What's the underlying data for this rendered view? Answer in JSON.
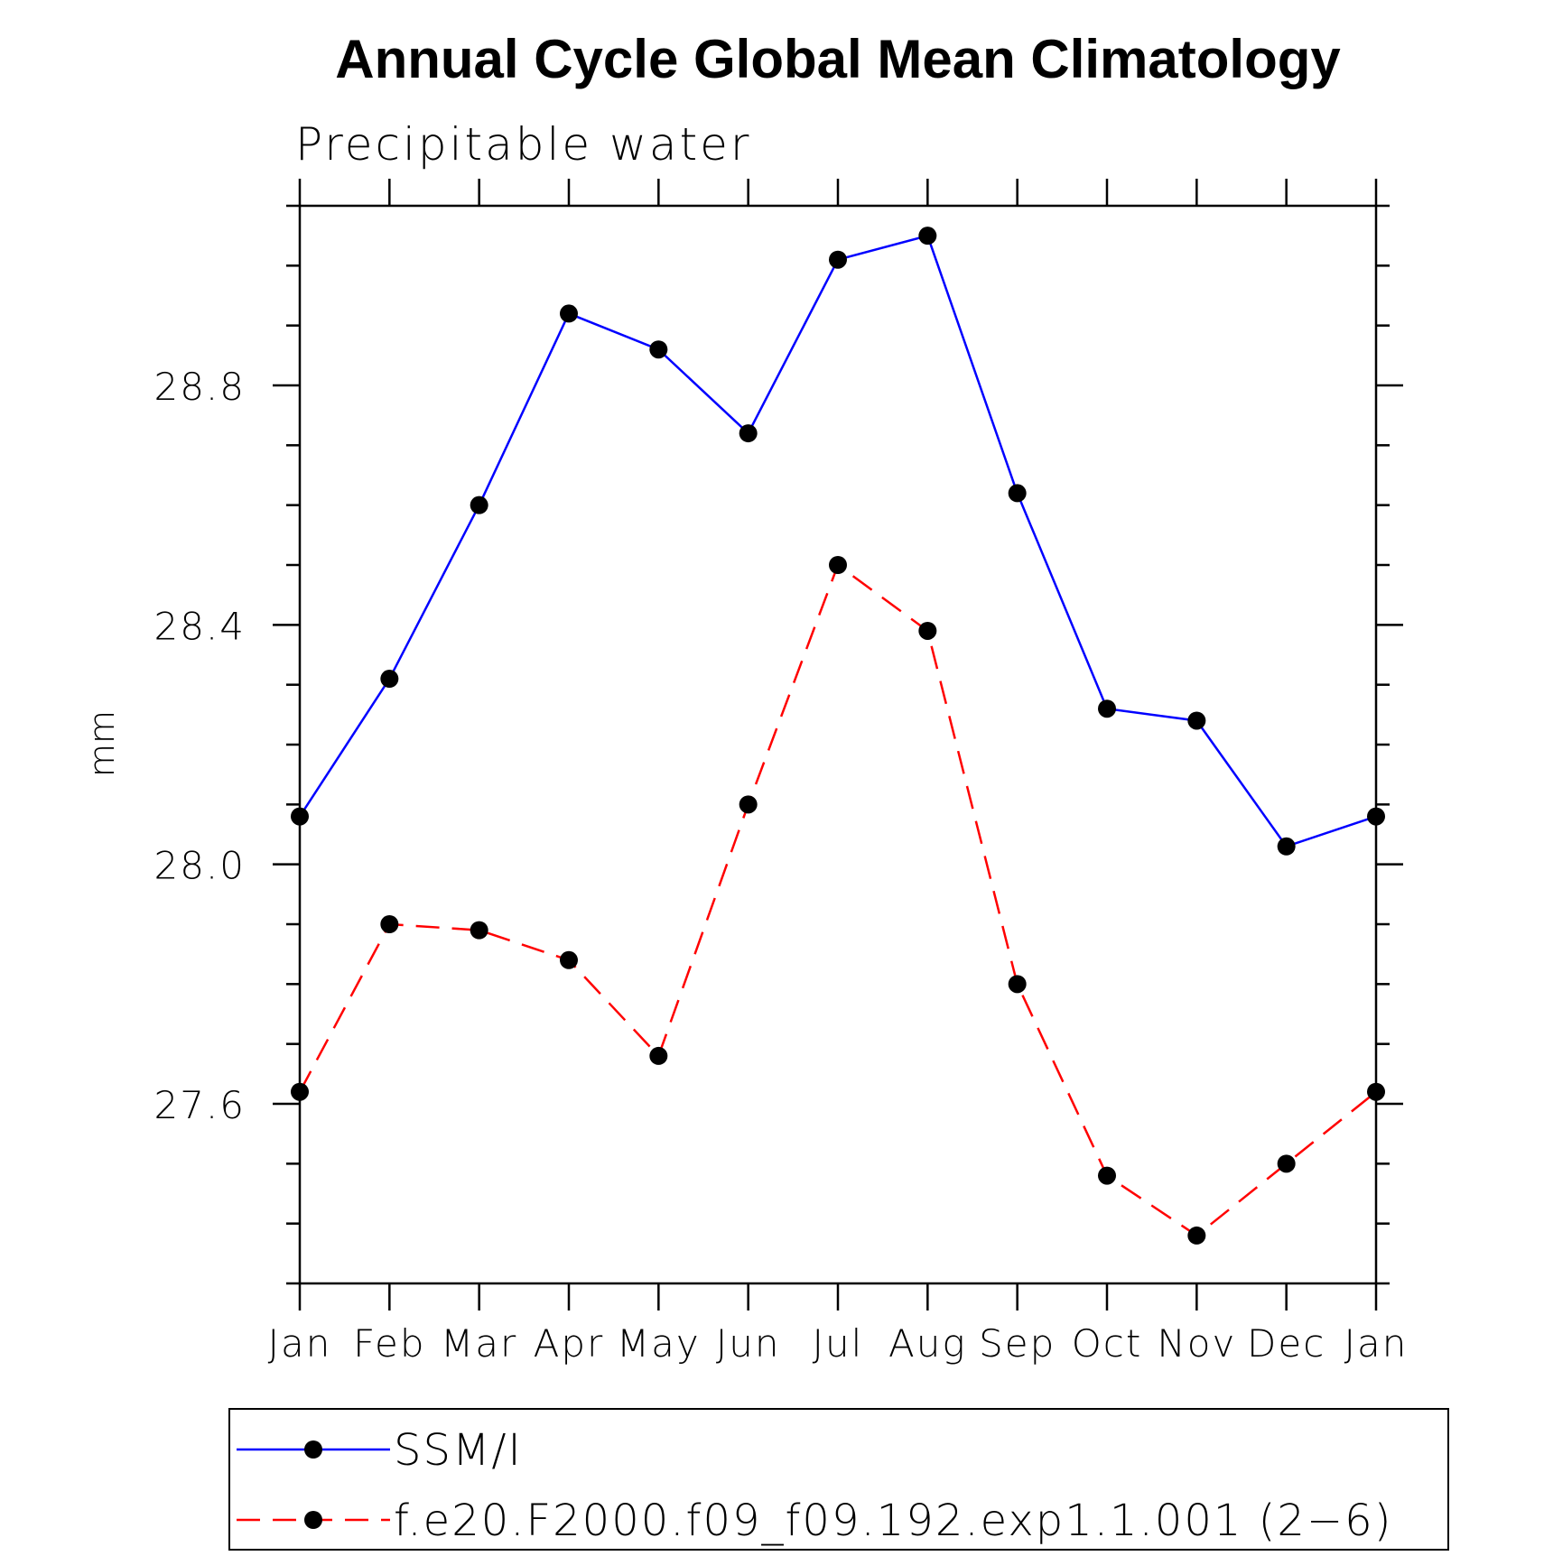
{
  "chart_data": {
    "type": "line",
    "title": "Annual Cycle Global Mean Climatology",
    "subtitle": "Precipitable water",
    "xlabel": "",
    "ylabel": "mm",
    "categories": [
      "Jan",
      "Feb",
      "Mar",
      "Apr",
      "May",
      "Jun",
      "Jul",
      "Aug",
      "Sep",
      "Oct",
      "Nov",
      "Dec",
      "Jan"
    ],
    "ylim": [
      27.3,
      29.1
    ],
    "yticks": [
      27.6,
      28.0,
      28.4,
      28.8
    ],
    "ytick_labels": [
      "27.6",
      "28.0",
      "28.4",
      "28.8"
    ],
    "yminor_step": 0.1,
    "grid": false,
    "legend_position": "bottom",
    "series": [
      {
        "name": "SSM/I",
        "color": "#0000ff",
        "line_style": "solid",
        "marker": "filled-circle",
        "values": [
          28.08,
          28.31,
          28.6,
          28.92,
          28.86,
          28.72,
          29.01,
          29.05,
          28.62,
          28.26,
          28.24,
          28.03,
          28.08
        ]
      },
      {
        "name": "f.e20.F2000.f09_f09.192.exp1.1.001 (2−6)",
        "color": "#ff0000",
        "line_style": "dashed",
        "marker": "filled-circle",
        "values": [
          27.62,
          27.9,
          27.89,
          27.84,
          27.68,
          28.1,
          28.5,
          28.39,
          27.8,
          27.48,
          27.38,
          27.5,
          27.62
        ]
      }
    ]
  }
}
